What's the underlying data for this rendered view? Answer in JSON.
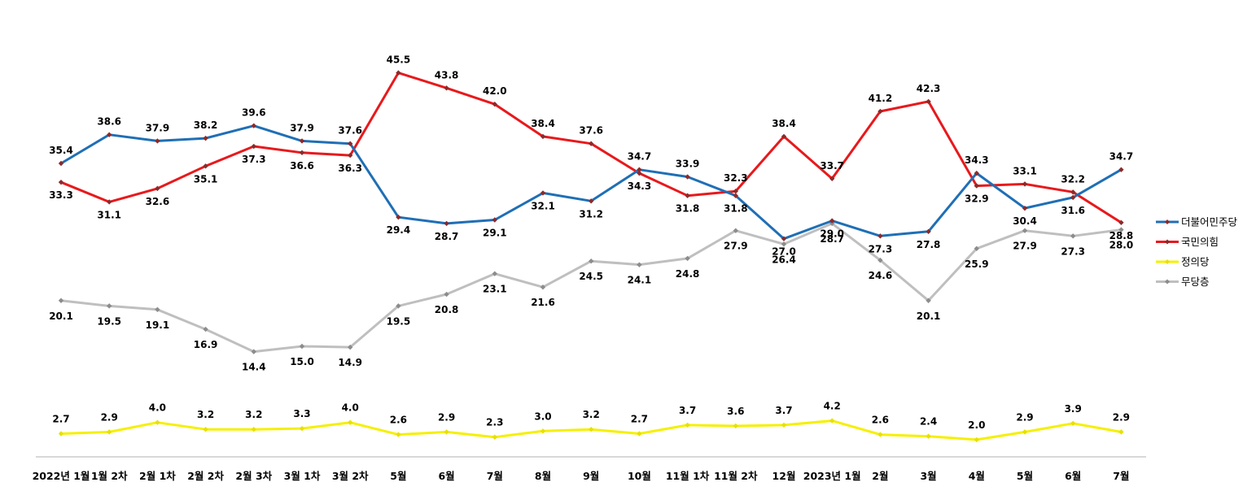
{
  "chart_data": {
    "type": "line",
    "title": "",
    "xlabel": "",
    "ylabel": "",
    "grid": false,
    "legend_position": "right",
    "categories": [
      "2022년 1월",
      "1월 2차",
      "2월 1차",
      "2월 2차",
      "2월 3차",
      "3월 1차",
      "3월 2차",
      "5월",
      "6월",
      "7월",
      "8월",
      "9월",
      "10월",
      "11월 1차",
      "11월 2차",
      "12월",
      "2023년 1월",
      "2월",
      "3월",
      "4월",
      "5월",
      "6월",
      "7월"
    ],
    "series": [
      {
        "name": "더불어민주당",
        "color": "#1f6fb5",
        "values": [
          35.4,
          38.6,
          37.9,
          38.2,
          39.6,
          37.9,
          37.6,
          29.4,
          28.7,
          29.1,
          32.1,
          31.2,
          34.7,
          33.9,
          31.8,
          27.0,
          29.0,
          27.3,
          27.8,
          34.3,
          30.4,
          31.6,
          34.7
        ]
      },
      {
        "name": "국민의힘",
        "color": "#e8191c",
        "values": [
          33.3,
          31.1,
          32.6,
          35.1,
          37.3,
          36.6,
          36.3,
          45.5,
          43.8,
          42.0,
          38.4,
          37.6,
          34.3,
          31.8,
          32.3,
          38.4,
          33.7,
          41.2,
          42.3,
          32.9,
          33.1,
          32.2,
          28.8
        ]
      },
      {
        "name": "정의당",
        "color": "#f5f000",
        "values": [
          2.7,
          2.9,
          4.0,
          3.2,
          3.2,
          3.3,
          4.0,
          2.6,
          2.9,
          2.3,
          3.0,
          3.2,
          2.7,
          3.7,
          3.6,
          3.7,
          4.2,
          2.6,
          2.4,
          2.0,
          2.9,
          3.9,
          2.9
        ]
      },
      {
        "name": "무당층",
        "color": "#bfbfbf",
        "values": [
          20.1,
          19.5,
          19.1,
          16.9,
          14.4,
          15.0,
          14.9,
          19.5,
          20.8,
          23.1,
          21.6,
          24.5,
          24.1,
          24.8,
          27.9,
          26.4,
          28.7,
          24.6,
          20.1,
          25.9,
          27.9,
          27.3,
          28.0
        ]
      }
    ]
  }
}
